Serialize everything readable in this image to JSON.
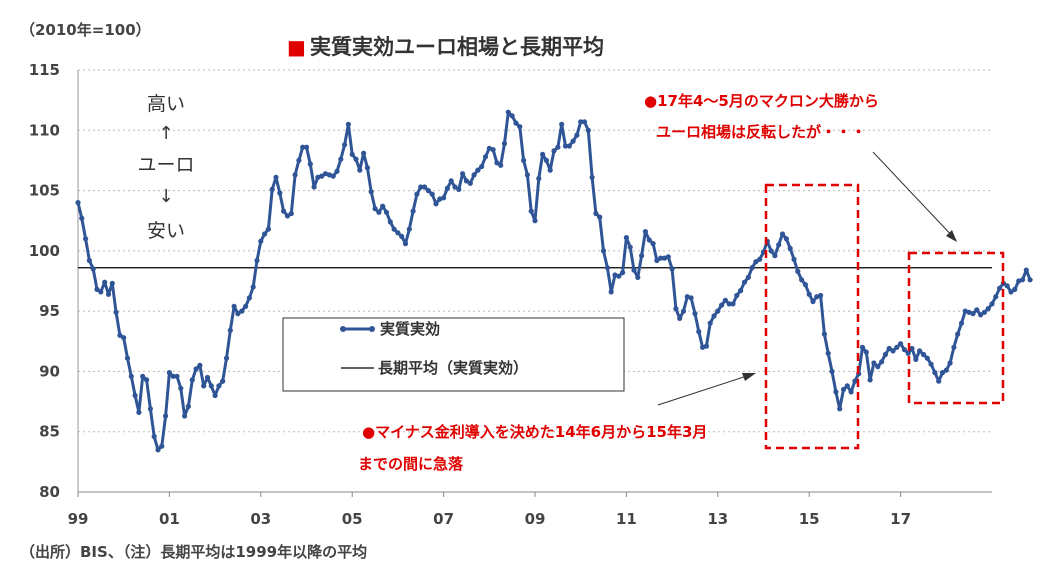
{
  "unit_note": "（2010年=100）",
  "source_note": "（出所）BIS、（注）長期平均は1999年以降の平均",
  "side_annotation": {
    "top": "高い",
    "up_arrow": "↑",
    "middle": "ユーロ",
    "down_arrow": "↓",
    "bottom": "安い"
  },
  "callouts": {
    "macron_line1": "●17年4～5月のマクロン大勝から",
    "macron_line2": "ユーロ相場は反転したが・・・",
    "negative_line1": "●マイナス金利導入を決めた14年6月から15年3月",
    "negative_line2": "までの間に急落"
  },
  "colors": {
    "series": "#2f5597",
    "average": "#000000",
    "highlight": "#e00000",
    "title_marker": "#e00000"
  },
  "chart_data": {
    "type": "line",
    "title": "実質実効ユーロ相場と長期平均",
    "title_marker": "■",
    "xlabel": "",
    "ylabel": "",
    "x_start": 1999.0,
    "x_step_months": 1,
    "xlim": [
      1999.0,
      2019.0
    ],
    "ylim": [
      80,
      115
    ],
    "yticks": [
      80,
      85,
      90,
      95,
      100,
      105,
      110,
      115
    ],
    "xticks": [
      {
        "value": 1999,
        "label": "99"
      },
      {
        "value": 2001,
        "label": "01"
      },
      {
        "value": 2003,
        "label": "03"
      },
      {
        "value": 2005,
        "label": "05"
      },
      {
        "value": 2007,
        "label": "07"
      },
      {
        "value": 2009,
        "label": "09"
      },
      {
        "value": 2011,
        "label": "11"
      },
      {
        "value": 2013,
        "label": "13"
      },
      {
        "value": 2015,
        "label": "15"
      },
      {
        "value": 2017,
        "label": "17"
      }
    ],
    "grid": "horizontal-dotted",
    "legend": {
      "placement": "center-left",
      "entries": [
        "実質実効",
        "長期平均（実質実効）"
      ]
    },
    "series": [
      {
        "name": "実質実効",
        "values": [
          104.0,
          102.7,
          101.0,
          99.2,
          98.5,
          96.8,
          96.6,
          97.4,
          96.4,
          97.3,
          94.9,
          93.0,
          92.8,
          91.1,
          89.6,
          88.0,
          86.6,
          89.6,
          89.3,
          86.9,
          84.6,
          83.5,
          83.8,
          86.3,
          89.9,
          89.6,
          89.6,
          88.6,
          86.3,
          87.1,
          89.3,
          90.2,
          90.5,
          88.8,
          89.5,
          88.8,
          88.0,
          88.8,
          89.2,
          91.1,
          93.4,
          95.4,
          94.8,
          95.0,
          95.4,
          96.1,
          97.0,
          99.2,
          100.8,
          101.4,
          101.8,
          105.1,
          106.1,
          104.8,
          103.3,
          102.9,
          103.1,
          106.3,
          107.5,
          108.6,
          108.6,
          107.2,
          105.3,
          106.1,
          106.2,
          106.4,
          106.3,
          106.2,
          106.6,
          107.6,
          108.8,
          110.5,
          108.0,
          107.6,
          106.7,
          108.1,
          106.9,
          104.9,
          103.5,
          103.2,
          103.7,
          103.2,
          102.4,
          101.8,
          101.5,
          101.2,
          100.6,
          101.8,
          103.3,
          104.7,
          105.3,
          105.3,
          105.0,
          104.7,
          103.9,
          104.3,
          104.4,
          105.2,
          105.8,
          105.3,
          105.1,
          106.4,
          105.8,
          105.6,
          106.3,
          106.7,
          107.0,
          107.8,
          108.5,
          108.4,
          107.3,
          107.1,
          108.9,
          111.5,
          111.2,
          110.6,
          110.3,
          107.5,
          106.3,
          103.3,
          102.5,
          106.0,
          108.0,
          107.5,
          106.7,
          108.3,
          108.6,
          110.5,
          108.7,
          108.7,
          109.1,
          109.6,
          110.7,
          110.7,
          110.0,
          106.1,
          103.1,
          102.8,
          100.0,
          98.6,
          96.6,
          98.0,
          97.9,
          98.2,
          101.1,
          100.3,
          98.4,
          97.8,
          99.6,
          101.6,
          100.9,
          100.6,
          99.2,
          99.4,
          99.4,
          99.5,
          98.5,
          95.2,
          94.4,
          95.0,
          96.2,
          96.1,
          94.8,
          93.3,
          92.0,
          92.1,
          94.0,
          94.6,
          95.0,
          95.5,
          95.9,
          95.6,
          95.6,
          96.3,
          96.7,
          97.4,
          97.8,
          98.6,
          99.1,
          99.3,
          99.9,
          100.8,
          100.0,
          99.6,
          100.5,
          101.4,
          101.0,
          100.2,
          99.3,
          98.3,
          97.6,
          97.2,
          96.4,
          95.8,
          96.2,
          96.3,
          93.1,
          91.5,
          90.0,
          88.3,
          86.9,
          88.5,
          88.8,
          88.3,
          89.2,
          89.8,
          92.0,
          91.6,
          89.3,
          90.7,
          90.4,
          90.8,
          91.4,
          91.9,
          91.7,
          92.0,
          92.3,
          91.8,
          91.5,
          91.9,
          91.0,
          91.7,
          91.4,
          91.1,
          90.6,
          89.9,
          89.2,
          89.9,
          90.1,
          90.7,
          92.0,
          93.1,
          94.0,
          95.0,
          94.9,
          94.8,
          95.1,
          94.7,
          94.9,
          95.2,
          95.6,
          96.2,
          96.9,
          97.3,
          97.1,
          96.6,
          96.8,
          97.5,
          97.6,
          98.4,
          97.6
        ]
      },
      {
        "name": "長期平均（実質実効）",
        "values": [
          98.6
        ]
      }
    ]
  }
}
